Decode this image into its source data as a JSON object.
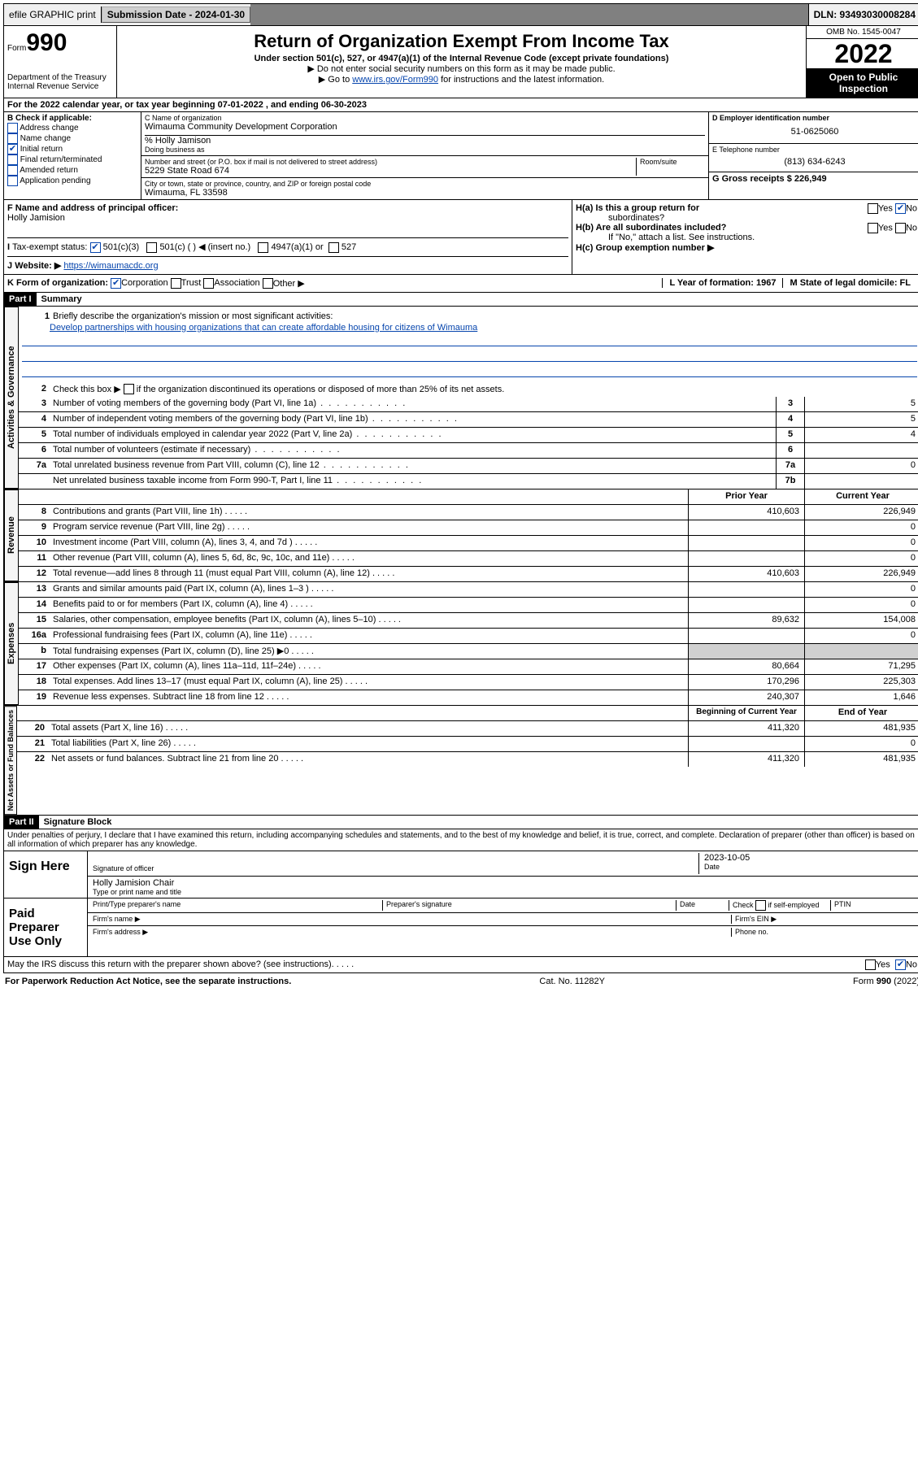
{
  "topbar": {
    "efile": "efile GRAPHIC print",
    "submission_label": "Submission Date - 2024-01-30",
    "dln": "DLN: 93493030008284"
  },
  "header": {
    "form_label": "Form",
    "form_num": "990",
    "dept": "Department of the Treasury",
    "irs": "Internal Revenue Service",
    "title": "Return of Organization Exempt From Income Tax",
    "subtitle": "Under section 501(c), 527, or 4947(a)(1) of the Internal Revenue Code (except private foundations)",
    "note1": "▶ Do not enter social security numbers on this form as it may be made public.",
    "note2_pre": "▶ Go to ",
    "note2_link": "www.irs.gov/Form990",
    "note2_post": " for instructions and the latest information.",
    "omb": "OMB No. 1545-0047",
    "year": "2022",
    "inspection": "Open to Public Inspection"
  },
  "section_a": "For the 2022 calendar year, or tax year beginning 07-01-2022   , and ending 06-30-2023",
  "col_b": {
    "title": "B Check if applicable:",
    "items": [
      "Address change",
      "Name change",
      "Initial return",
      "Final return/terminated",
      "Amended return",
      "Application pending"
    ],
    "checked_idx": 2
  },
  "col_c": {
    "name_label": "C Name of organization",
    "name": "Wimauma Community Development Corporation",
    "care_of": "% Holly Jamison",
    "dba_label": "Doing business as",
    "addr_label": "Number and street (or P.O. box if mail is not delivered to street address)",
    "room_label": "Room/suite",
    "addr": "5229 State Road 674",
    "city_label": "City or town, state or province, country, and ZIP or foreign postal code",
    "city": "Wimauma, FL  33598"
  },
  "col_de": {
    "ein_label": "D Employer identification number",
    "ein": "51-0625060",
    "phone_label": "E Telephone number",
    "phone": "(813) 634-6243",
    "gross_label": "G Gross receipts $ 226,949"
  },
  "row_f": {
    "label": "F  Name and address of principal officer:",
    "name": "Holly Jamision"
  },
  "row_h": {
    "ha": "H(a)  Is this a group return for",
    "ha2": "subordinates?",
    "hb": "H(b)  Are all subordinates included?",
    "hb_note": "If \"No,\" attach a list. See instructions.",
    "hc": "H(c)  Group exemption number ▶",
    "yes": "Yes",
    "no": "No"
  },
  "row_i": {
    "label": "Tax-exempt status:",
    "opts": [
      "501(c)(3)",
      "501(c) (  ) ◀ (insert no.)",
      "4947(a)(1) or",
      "527"
    ]
  },
  "row_j": {
    "label": "Website: ▶",
    "url": "https://wimaumacdc.org"
  },
  "row_k": {
    "label": "K Form of organization:",
    "opts": [
      "Corporation",
      "Trust",
      "Association",
      "Other ▶"
    ],
    "l_label": "L Year of formation: 1967",
    "m_label": "M State of legal domicile: FL"
  },
  "part1": {
    "header": "Part I",
    "title": "Summary",
    "tabs": [
      "Activities & Governance",
      "Revenue",
      "Expenses",
      "Net Assets or Fund Balances"
    ],
    "line1_label": "Briefly describe the organization's mission or most significant activities:",
    "mission": "Develop partnerships with housing organizations that can create affordable housing for citizens of Wimauma",
    "line2": "Check this box ▶       if the organization discontinued its operations or disposed of more than 25% of its net assets.",
    "lines_gov": [
      {
        "n": "3",
        "t": "Number of voting members of the governing body (Part VI, line 1a)",
        "box": "3",
        "v": "5"
      },
      {
        "n": "4",
        "t": "Number of independent voting members of the governing body (Part VI, line 1b)",
        "box": "4",
        "v": "5"
      },
      {
        "n": "5",
        "t": "Total number of individuals employed in calendar year 2022 (Part V, line 2a)",
        "box": "5",
        "v": "4"
      },
      {
        "n": "6",
        "t": "Total number of volunteers (estimate if necessary)",
        "box": "6",
        "v": ""
      },
      {
        "n": "7a",
        "t": "Total unrelated business revenue from Part VIII, column (C), line 12",
        "box": "7a",
        "v": "0"
      },
      {
        "n": "",
        "t": "Net unrelated business taxable income from Form 990-T, Part I, line 11",
        "box": "7b",
        "v": ""
      }
    ],
    "col_headers": {
      "prior": "Prior Year",
      "current": "Current Year"
    },
    "lines_rev": [
      {
        "n": "8",
        "t": "Contributions and grants (Part VIII, line 1h)",
        "p": "410,603",
        "c": "226,949"
      },
      {
        "n": "9",
        "t": "Program service revenue (Part VIII, line 2g)",
        "p": "",
        "c": "0"
      },
      {
        "n": "10",
        "t": "Investment income (Part VIII, column (A), lines 3, 4, and 7d )",
        "p": "",
        "c": "0"
      },
      {
        "n": "11",
        "t": "Other revenue (Part VIII, column (A), lines 5, 6d, 8c, 9c, 10c, and 11e)",
        "p": "",
        "c": "0"
      },
      {
        "n": "12",
        "t": "Total revenue—add lines 8 through 11 (must equal Part VIII, column (A), line 12)",
        "p": "410,603",
        "c": "226,949"
      }
    ],
    "lines_exp": [
      {
        "n": "13",
        "t": "Grants and similar amounts paid (Part IX, column (A), lines 1–3 )",
        "p": "",
        "c": "0"
      },
      {
        "n": "14",
        "t": "Benefits paid to or for members (Part IX, column (A), line 4)",
        "p": "",
        "c": "0"
      },
      {
        "n": "15",
        "t": "Salaries, other compensation, employee benefits (Part IX, column (A), lines 5–10)",
        "p": "89,632",
        "c": "154,008"
      },
      {
        "n": "16a",
        "t": "Professional fundraising fees (Part IX, column (A), line 11e)",
        "p": "",
        "c": "0"
      },
      {
        "n": "b",
        "t": "Total fundraising expenses (Part IX, column (D), line 25) ▶0",
        "p": "shade",
        "c": "shade"
      },
      {
        "n": "17",
        "t": "Other expenses (Part IX, column (A), lines 11a–11d, 11f–24e)",
        "p": "80,664",
        "c": "71,295"
      },
      {
        "n": "18",
        "t": "Total expenses. Add lines 13–17 (must equal Part IX, column (A), line 25)",
        "p": "170,296",
        "c": "225,303"
      },
      {
        "n": "19",
        "t": "Revenue less expenses. Subtract line 18 from line 12",
        "p": "240,307",
        "c": "1,646"
      }
    ],
    "col_headers2": {
      "begin": "Beginning of Current Year",
      "end": "End of Year"
    },
    "lines_net": [
      {
        "n": "20",
        "t": "Total assets (Part X, line 16)",
        "p": "411,320",
        "c": "481,935"
      },
      {
        "n": "21",
        "t": "Total liabilities (Part X, line 26)",
        "p": "",
        "c": "0"
      },
      {
        "n": "22",
        "t": "Net assets or fund balances. Subtract line 21 from line 20",
        "p": "411,320",
        "c": "481,935"
      }
    ]
  },
  "part2": {
    "header": "Part II",
    "title": "Signature Block",
    "penalty": "Under penalties of perjury, I declare that I have examined this return, including accompanying schedules and statements, and to the best of my knowledge and belief, it is true, correct, and complete. Declaration of preparer (other than officer) is based on all information of which preparer has any knowledge.",
    "sign_here": "Sign Here",
    "sig_officer": "Signature of officer",
    "date": "Date",
    "sig_date": "2023-10-05",
    "officer_name": "Holly Jamision  Chair",
    "type_name": "Type or print name and title",
    "paid": "Paid Preparer Use Only",
    "prep_name": "Print/Type preparer's name",
    "prep_sig": "Preparer's signature",
    "prep_date": "Date",
    "prep_check": "Check        if self-employed",
    "ptin": "PTIN",
    "firm_name": "Firm's name  ▶",
    "firm_ein": "Firm's EIN ▶",
    "firm_addr": "Firm's address ▶",
    "phone": "Phone no."
  },
  "footer": {
    "discuss": "May the IRS discuss this return with the preparer shown above? (see instructions)",
    "paperwork": "For Paperwork Reduction Act Notice, see the separate instructions.",
    "cat": "Cat. No. 11282Y",
    "form": "Form 990 (2022)",
    "yes": "Yes",
    "no": "No"
  }
}
